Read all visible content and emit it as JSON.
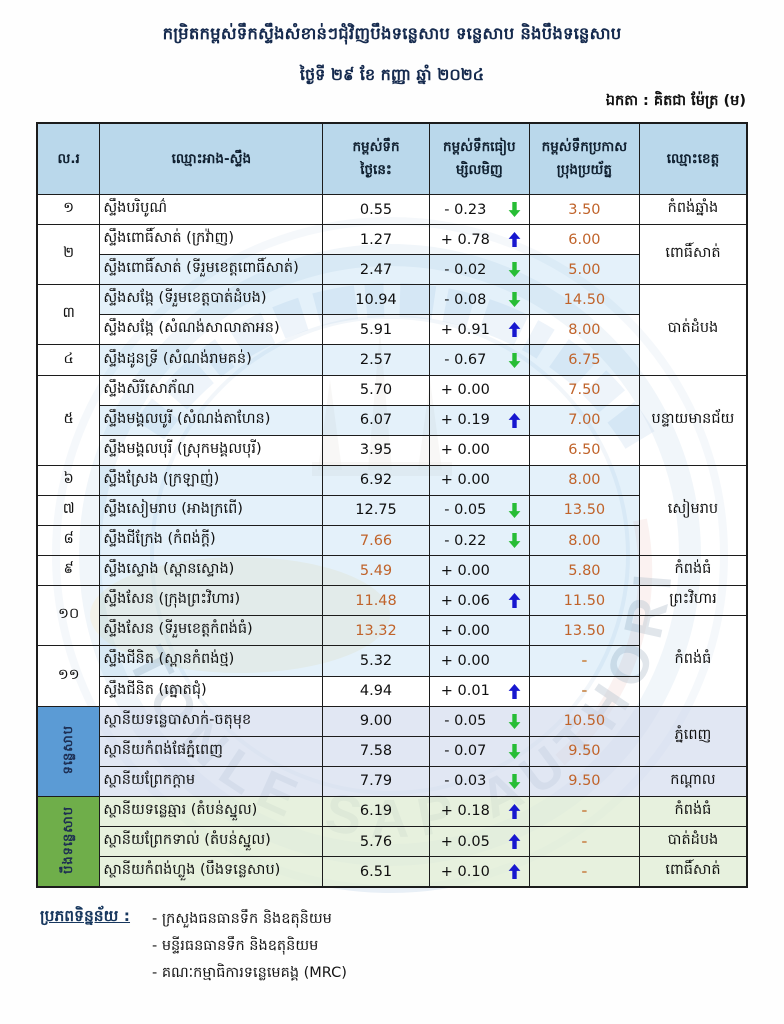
{
  "title": {
    "line1": "កម្រិតកម្ពស់ទឹកស្ទឹងសំខាន់ៗជុំវិញបឹងទន្លេសាប ទន្លេសាប និងបឹងទន្លេសាប",
    "line2": "ថ្ងៃទី ២៩ ខែ កញ្ញា ឆ្នាំ ២០២៤"
  },
  "unit_label": "ឯកតា : គិតជា ម៉ែត្រ (ម)",
  "watermark": {
    "arc_text": "TONLE SAP AUTHORITY"
  },
  "colors": {
    "header_bg": "#b6d6ea",
    "stripe_row": "#d2e7f6",
    "tonle_row": "#dae2f0",
    "boeng_row": "#e3efd8",
    "sidebar_blue": "#5b9bd5",
    "sidebar_green": "#6fae4a",
    "warning_text": "#c0632a",
    "trend_up": "#1717cf",
    "trend_down": "#27bd35"
  },
  "table": {
    "headers": {
      "no": "ល.រ",
      "name": "ឈ្មោះអាង-ស្ទឹង",
      "today": "កម្ពស់ទឹក\nថ្ងៃនេះ",
      "change": "កម្ពស់ទឹកធៀប\nម្សិលមិញ",
      "warning": "កម្ពស់ទឹកប្រកាស\nប្រុងប្រយ័ត្ន",
      "province": "ឈ្មោះខេត្ត"
    },
    "rows": [
      {
        "no": "១",
        "no_span": 1,
        "name": "ស្ទឹងបរិបូណ៌",
        "today": "0.55",
        "alert": false,
        "change": "- 0.23",
        "trend": "down",
        "warning": "3.50",
        "province": "កំពង់ឆ្នាំង",
        "province_span": 1,
        "bg": "white"
      },
      {
        "no": "២",
        "no_span": 2,
        "name": "ស្ទឹងពោធិ៍សាត់ (ក្រវ៉ាញ)",
        "today": "1.27",
        "alert": false,
        "change": "+ 0.78",
        "trend": "up",
        "warning": "6.00",
        "province": "ពោធិ៍សាត់",
        "province_span": 2,
        "bg": "white"
      },
      {
        "name": "ស្ទឹងពោធិ៍សាត់ (ទីរួមខេត្តពោធិ៍សាត់)",
        "today": "2.47",
        "alert": false,
        "change": "- 0.02",
        "trend": "down",
        "warning": "5.00",
        "bg": "stripe"
      },
      {
        "no": "៣",
        "no_span": 2,
        "name": "ស្ទឹងសង្កែ (ទីរួមខេត្តបាត់ដំបង)",
        "today": "10.94",
        "alert": false,
        "change": "- 0.08",
        "trend": "down",
        "warning": "14.50",
        "province": "បាត់ដំបង",
        "province_span": 3,
        "bg": "stripe"
      },
      {
        "name": "ស្ទឹងសង្កែ (សំណង់សាលាតាអន)",
        "today": "5.91",
        "alert": false,
        "change": "+ 0.91",
        "trend": "up",
        "warning": "8.00",
        "bg": "white"
      },
      {
        "no": "៤",
        "no_span": 1,
        "name": "ស្ទឹងដូនទ្រី (សំណង់រាមគន់)",
        "today": "2.57",
        "alert": false,
        "change": "- 0.67",
        "trend": "down",
        "warning": "6.75",
        "bg": "stripe"
      },
      {
        "no": "៥",
        "no_span": 3,
        "name": "ស្ទឹងសិរីសោភ័ណ",
        "today": "5.70",
        "alert": false,
        "change": "+ 0.00",
        "trend": null,
        "warning": "7.50",
        "province": "បន្ទាយមានជ័យ",
        "province_span": 3,
        "bg": "white"
      },
      {
        "name": "ស្ទឹងមង្គលបូរី (សំណង់តាហែន)",
        "today": "6.07",
        "alert": false,
        "change": "+ 0.19",
        "trend": "up",
        "warning": "7.00",
        "bg": "stripe"
      },
      {
        "name": "ស្ទឹងមង្គលបុរី (ស្រុកមង្គលបុរី)",
        "today": "3.95",
        "alert": false,
        "change": "+ 0.00",
        "trend": null,
        "warning": "6.50",
        "bg": "white"
      },
      {
        "no": "៦",
        "no_span": 1,
        "name": "ស្ទឹងស្រែង (ក្រឡាញ់)",
        "today": "6.92",
        "alert": false,
        "change": "+ 0.00",
        "trend": null,
        "warning": "8.00",
        "province": "សៀមរាប",
        "province_span": 3,
        "bg": "stripe"
      },
      {
        "no": "៧",
        "no_span": 1,
        "name": "ស្ទឹងសៀមរាប (អាងក្រពើ)",
        "today": "12.75",
        "alert": false,
        "change": "- 0.05",
        "trend": "down",
        "warning": "13.50",
        "bg": "stripe"
      },
      {
        "no": "៨",
        "no_span": 1,
        "name": "ស្ទឹងជីក្រែង (កំពង់ក្តី)",
        "today": "7.66",
        "alert": true,
        "change": "- 0.22",
        "trend": "down",
        "warning": "8.00",
        "bg": "stripe"
      },
      {
        "no": "៩",
        "no_span": 1,
        "name": "ស្ទឹងស្ទោង (ស្ពានស្ទោង)",
        "today": "5.49",
        "alert": true,
        "change": "+ 0.00",
        "trend": null,
        "warning": "5.80",
        "province": "កំពង់ធំ",
        "province_span": 1,
        "bg": "stripe"
      },
      {
        "no": "១០",
        "no_span": 2,
        "name": "ស្ទឹងសែន (ក្រុងព្រះវិហារ)",
        "today": "11.48",
        "alert": true,
        "change": "+ 0.06",
        "trend": "up",
        "warning": "11.50",
        "province": "ព្រះវិហារ",
        "province_span": 1,
        "bg": "stripe"
      },
      {
        "name": "ស្ទឹងសែន (ទីរួមខេត្តកំពង់ធំ)",
        "today": "13.32",
        "alert": true,
        "change": "+ 0.00",
        "trend": null,
        "warning": "13.50",
        "province": "កំពង់ធំ",
        "province_span": 3,
        "bg": "stripe"
      },
      {
        "no": "១១",
        "no_span": 2,
        "name": "ស្ទឹងជីនិត (ស្ពានកំពង់ថ្ម)",
        "today": "5.32",
        "alert": false,
        "change": "+ 0.00",
        "trend": null,
        "warning": "-",
        "bg": "stripe"
      },
      {
        "name": "ស្ទឹងជីនិត (ត្នោតជុំ)",
        "today": "4.94",
        "alert": false,
        "change": "+ 0.01",
        "trend": "up",
        "warning": "-",
        "bg": "white"
      },
      {
        "group": {
          "label": "ទន្លេសាប",
          "span": 3,
          "color": "blue"
        },
        "name": "ស្ថានីយទន្លេបាសាក់-ចតុមុខ",
        "today": "9.00",
        "alert": false,
        "change": "- 0.05",
        "trend": "down",
        "warning": "10.50",
        "province": "ភ្នំពេញ",
        "province_span": 2,
        "bg": "tonle"
      },
      {
        "name": "ស្ថានីយកំពង់ផែភ្នំពេញ",
        "today": "7.58",
        "alert": false,
        "change": "- 0.07",
        "trend": "down",
        "warning": "9.50",
        "bg": "tonle"
      },
      {
        "name": "ស្ថានីយព្រែកក្តាម",
        "today": "7.79",
        "alert": false,
        "change": "- 0.03",
        "trend": "down",
        "warning": "9.50",
        "province": "កណ្តាល",
        "province_span": 1,
        "bg": "tonle"
      },
      {
        "group": {
          "label": "បឹងទន្លេសាប",
          "span": 3,
          "color": "green"
        },
        "name": "ស្ថានីយទន្លេឆ្មារ (តំបន់ស្នួល)",
        "today": "6.19",
        "alert": false,
        "change": "+ 0.18",
        "trend": "up",
        "warning": "-",
        "province": "កំពង់ធំ",
        "province_span": 1,
        "bg": "boeng"
      },
      {
        "name": "ស្ថានីយព្រែកទាល់ (តំបន់ស្នួល)",
        "today": "5.76",
        "alert": false,
        "change": "+ 0.05",
        "trend": "up",
        "warning": "-",
        "province": "បាត់ដំបង",
        "province_span": 1,
        "bg": "boeng"
      },
      {
        "name": "ស្ថានីយកំពង់ហ្លួង (បឹងទន្លេសាប)",
        "today": "6.51",
        "alert": false,
        "change": "+ 0.10",
        "trend": "up",
        "warning": "-",
        "province": "ពោធិ៍សាត់",
        "province_span": 1,
        "bg": "boeng"
      }
    ]
  },
  "footer": {
    "label": "ប្រភពទិន្នន័យ :",
    "sources": [
      "- ក្រសួងធនធានទឹក និងឧតុនិយម",
      "- មន្ទីរធនធានទឹក និងឧតុនិយម",
      "- គណៈកម្មាធិការទន្លេមេគង្គ (MRC)"
    ]
  }
}
